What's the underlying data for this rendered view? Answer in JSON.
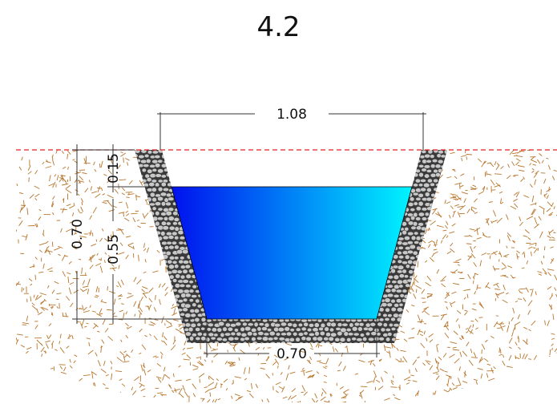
{
  "title": "4.2",
  "dimensions": {
    "top_width": "1.08",
    "bottom_width": "0.70",
    "freeboard": "0.15",
    "water_depth": "0.55",
    "total_depth": "0.70"
  },
  "colors": {
    "water_left": "#0010ee",
    "water_right": "#00f4ff",
    "soil_fleck": "#b8742a",
    "lining_stone": "#c8c8c8",
    "lining_joint": "#3a3a3a",
    "ground_line": "#e02020"
  }
}
